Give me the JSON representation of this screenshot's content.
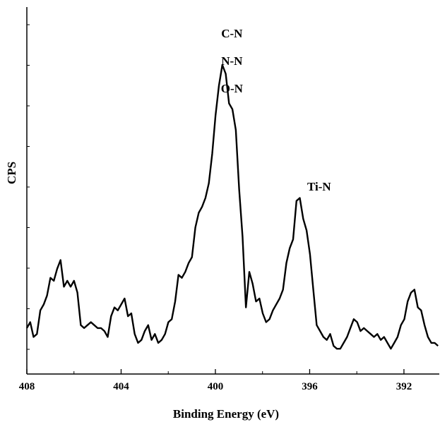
{
  "chart_data": {
    "type": "line",
    "title": "",
    "xlabel": "Binding Energy (eV)",
    "ylabel": "CPS",
    "xlim": [
      408,
      390.5
    ],
    "x_reversed": true,
    "x_ticks": [
      408,
      404,
      400,
      396,
      392
    ],
    "x_tick_labels": [
      "408",
      "404",
      "400",
      "396",
      "392"
    ],
    "y_ticks_minor_count": 9,
    "y_tick_labels_shown": false,
    "ylim": [
      0,
      100
    ],
    "grid": false,
    "series": [
      {
        "values_y": [
          11,
          13,
          8,
          9,
          17,
          19,
          22,
          28,
          27,
          31,
          34,
          25,
          27,
          25,
          27,
          23,
          12,
          11,
          12,
          13,
          12,
          11,
          11,
          10,
          8,
          15,
          18,
          17,
          19,
          21,
          15,
          16,
          9,
          6,
          7,
          10,
          12,
          7,
          9,
          6,
          7,
          9,
          13,
          14,
          20,
          29,
          28,
          30,
          33,
          35,
          45,
          50,
          52,
          55,
          60,
          70,
          83,
          93,
          100,
          97,
          87,
          85,
          78,
          58,
          42,
          18,
          30,
          26,
          20,
          21,
          16,
          13,
          14,
          17,
          19,
          21,
          24,
          33,
          38,
          41,
          54,
          55,
          48,
          44,
          36,
          24,
          12,
          10,
          8,
          7,
          9,
          5,
          4,
          4,
          6,
          8,
          11,
          14,
          13,
          10,
          11,
          10,
          9,
          8,
          9,
          7,
          8,
          6,
          4,
          6,
          8,
          12,
          14,
          20,
          23,
          24,
          18,
          17,
          12,
          8,
          6,
          6,
          5
        ],
        "x_start": 408,
        "x_step": -0.143
      }
    ],
    "annotations": [
      {
        "text": "C-N",
        "x": 399.3
      },
      {
        "text": "N-N",
        "x": 399.3
      },
      {
        "text": "O-N",
        "x": 399.3
      },
      {
        "text": "Ti-N",
        "x": 395.6
      }
    ]
  }
}
